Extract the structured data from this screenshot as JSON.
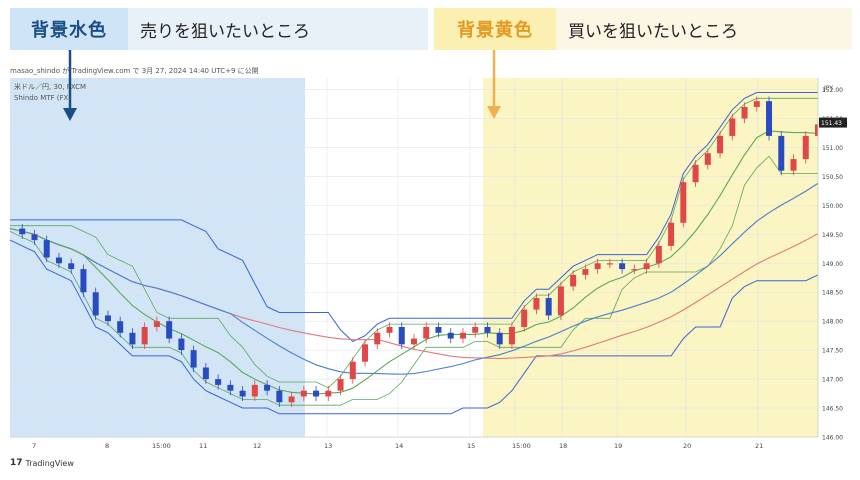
{
  "legend": {
    "sell_tag": "背景水色",
    "sell_desc": "売りを狙いたいところ",
    "buy_tag": "背景黄色",
    "buy_desc": "買いを狙いたいところ"
  },
  "meta_line": "masao_shindo が TradingView.com で 3月 27, 2024 14:40 UTC+9 に公開",
  "symbol_line": "米ドル／円, 30, FXCM",
  "indicator_line": "Shindo MTF (FX)",
  "currency": "JPY",
  "last_price": "151.43",
  "brand": "TradingView",
  "colors": {
    "sell_bg": "#cfe4f7",
    "buy_bg": "#fbf3c0",
    "sell_arrow": "#1a4f86",
    "buy_arrow": "#f0b050",
    "candle_up": "#e04848",
    "candle_down": "#2a4bc0",
    "ma_red": "#e57a7a",
    "ma_blue": "#4d7fd0",
    "ma_green": "#5aa85a",
    "band_blue": "#3a63d8"
  },
  "chart_data": {
    "type": "candlestick",
    "instrument": "米ドル／円",
    "timeframe": "30",
    "ylim": [
      146.0,
      152.2
    ],
    "y_ticks": [
      "152.00",
      "151.50",
      "151.00",
      "150.50",
      "150.00",
      "149.50",
      "149.00",
      "148.50",
      "148.00",
      "147.50",
      "147.00",
      "146.50",
      "146.00"
    ],
    "x_ticks": [
      "7",
      "8",
      "15:00",
      "11",
      "12",
      "13",
      "14",
      "15",
      "15:00",
      "18",
      "19",
      "20",
      "21"
    ],
    "regions": [
      {
        "label": "sell",
        "from": "7",
        "to": "12"
      },
      {
        "label": "buy",
        "from": "15",
        "to": "21"
      }
    ],
    "price_path": [
      149.6,
      149.5,
      149.4,
      149.1,
      149.0,
      148.9,
      148.5,
      148.1,
      148.0,
      147.8,
      147.6,
      147.9,
      148.0,
      147.7,
      147.5,
      147.2,
      147.0,
      146.9,
      146.8,
      146.7,
      146.9,
      146.8,
      146.6,
      146.7,
      146.8,
      146.7,
      146.8,
      147.0,
      147.3,
      147.6,
      147.8,
      147.9,
      147.6,
      147.7,
      147.9,
      147.8,
      147.7,
      147.8,
      147.9,
      147.8,
      147.6,
      147.9,
      148.2,
      148.4,
      148.1,
      148.6,
      148.8,
      148.9,
      149.0,
      149.0,
      148.9,
      148.9,
      149.0,
      149.3,
      149.7,
      150.4,
      150.7,
      150.9,
      151.2,
      151.5,
      151.7,
      151.8,
      151.2,
      150.6,
      150.8,
      151.2,
      151.4
    ]
  }
}
